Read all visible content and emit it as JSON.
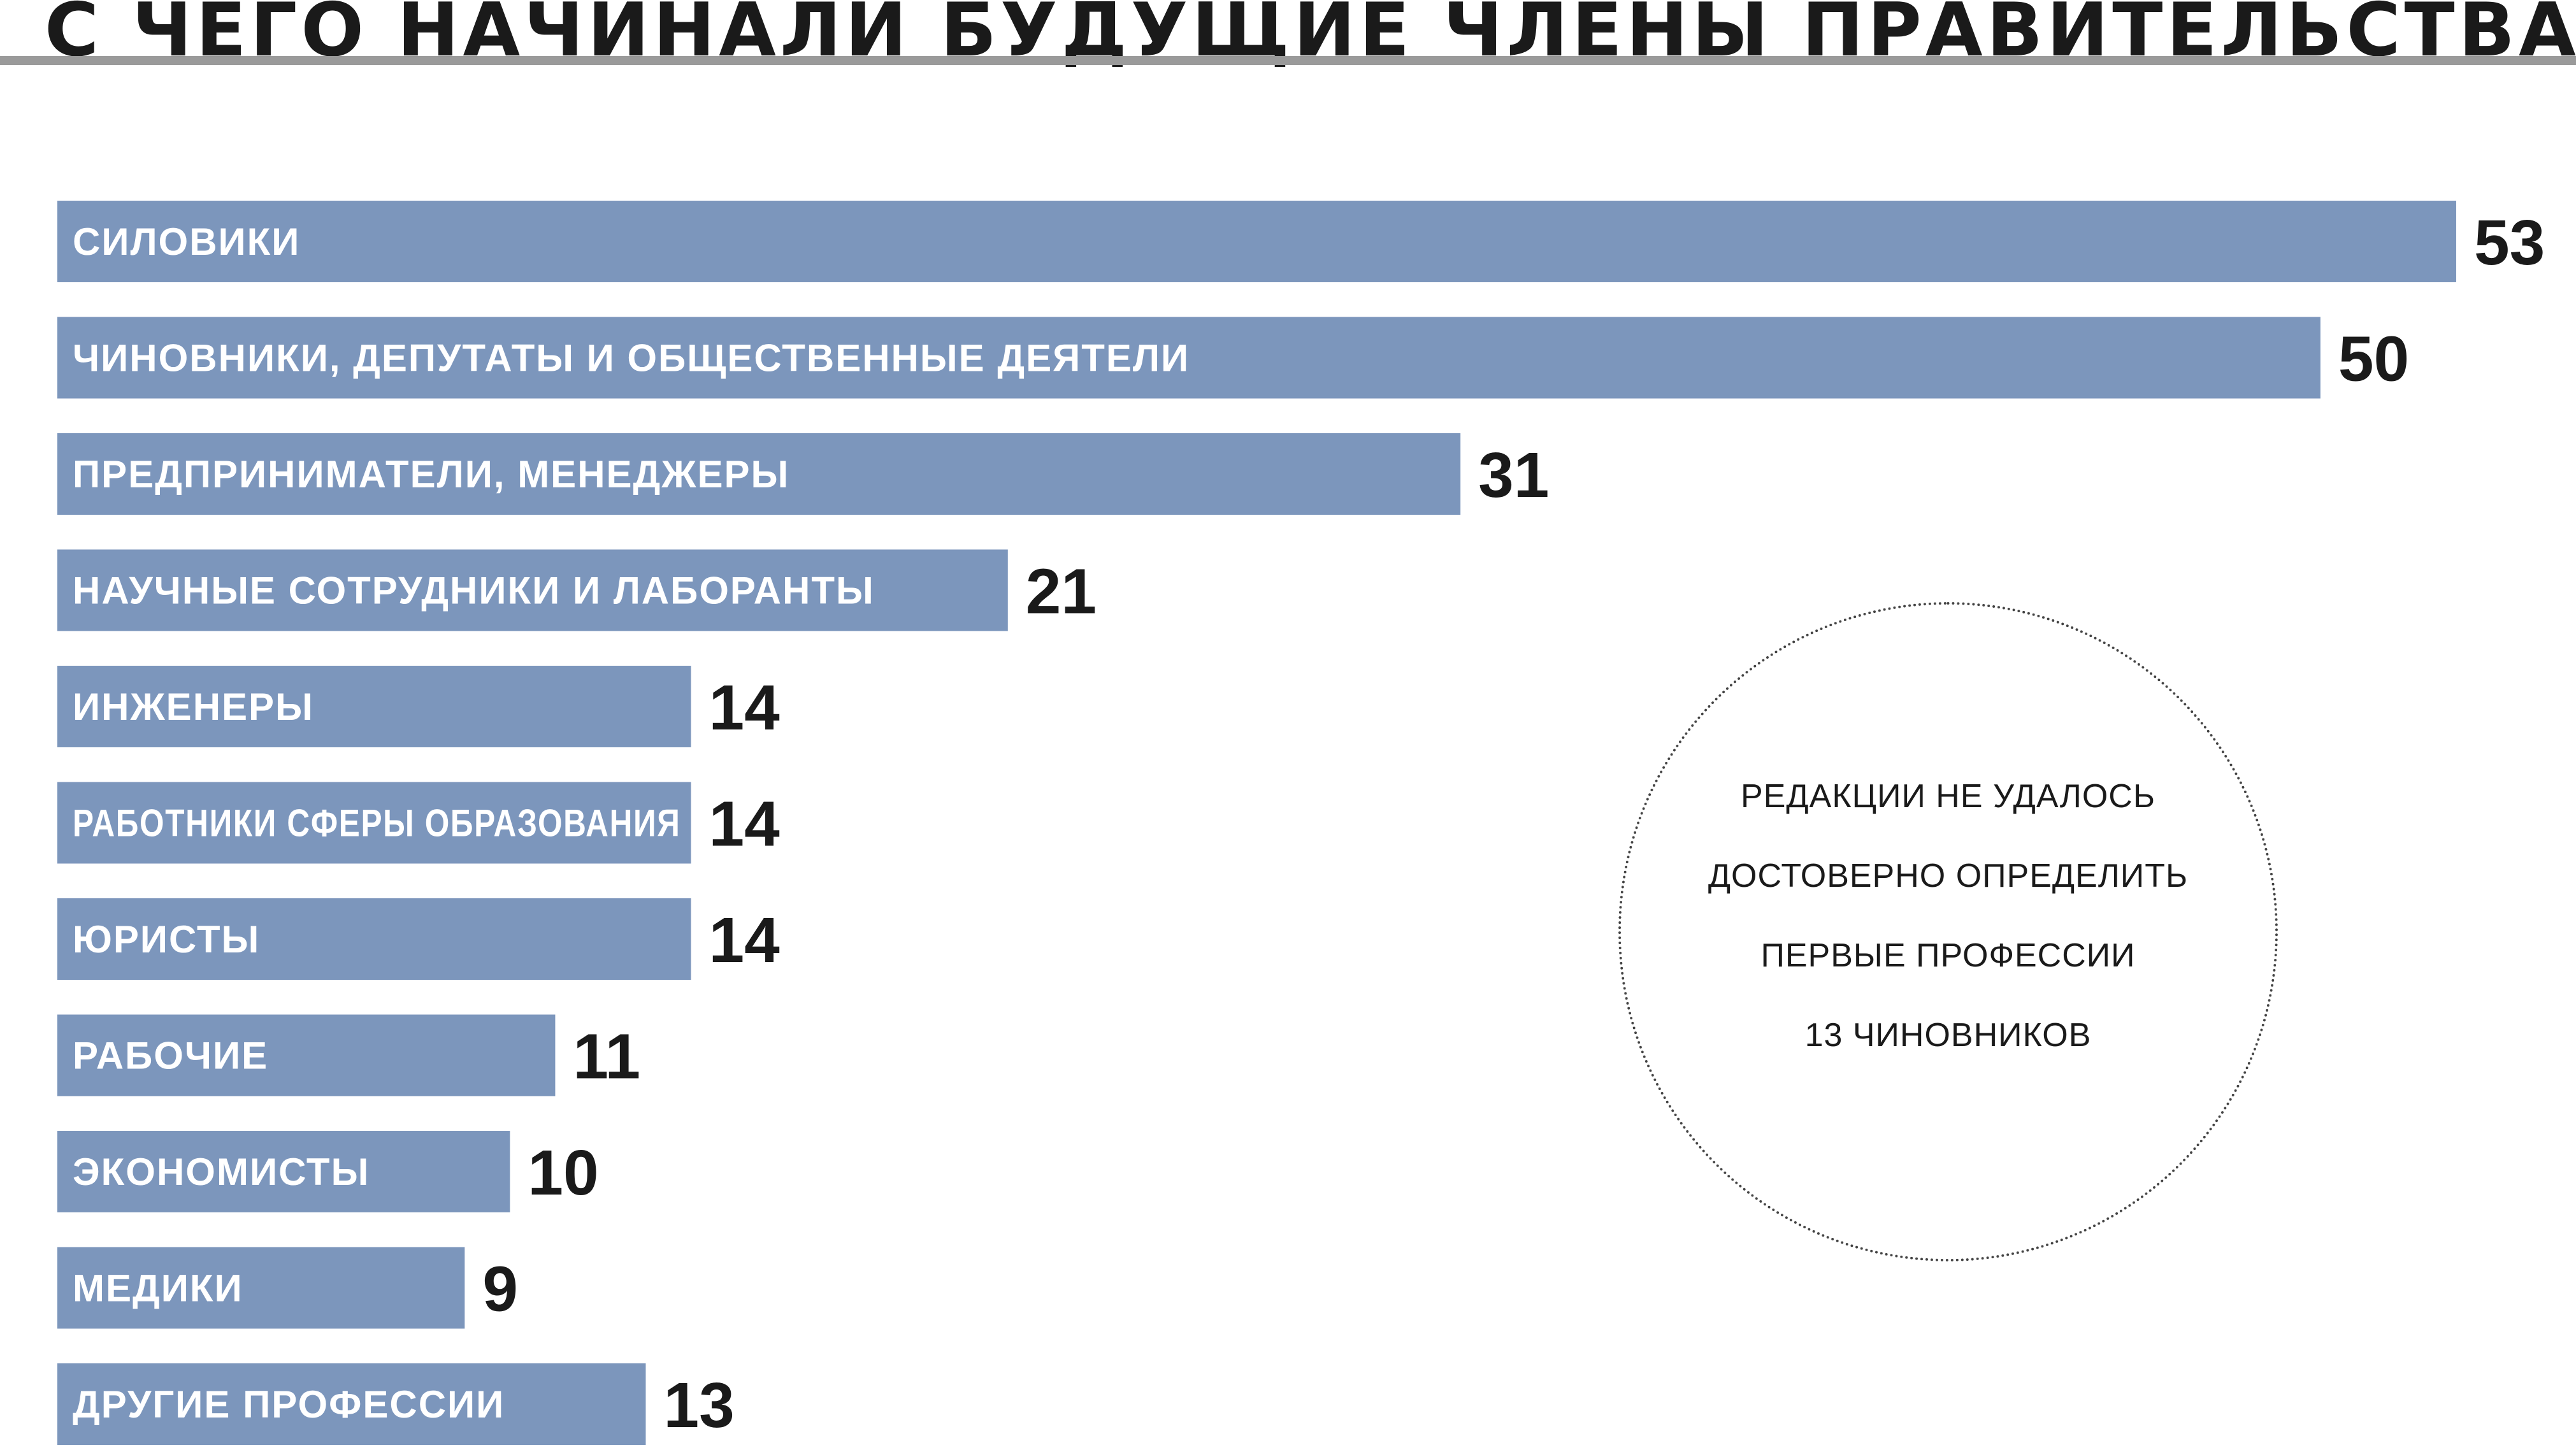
{
  "title": "С ЧЕГО НАЧИНАЛИ БУДУЩИЕ ЧЛЕНЫ ПРАВИТЕЛЬСТВА",
  "note": {
    "lines": [
      "РЕДАКЦИИ НЕ УДАЛОСЬ",
      "ДОСТОВЕРНО ОПРЕДЕЛИТЬ",
      "ПЕРВЫЕ ПРОФЕССИИ",
      "13 ЧИНОВНИКОВ"
    ]
  },
  "colors": {
    "bar": "#7c96bc",
    "text": "#1a1a1a",
    "rule": "#9a9a9a"
  },
  "chart_data": {
    "type": "bar",
    "orientation": "horizontal",
    "title": "С ЧЕГО НАЧИНАЛИ БУДУЩИЕ ЧЛЕНЫ ПРАВИТЕЛЬСТВА",
    "categories": [
      "СИЛОВИКИ",
      "ЧИНОВНИКИ, ДЕПУТАТЫ И ОБЩЕСТВЕННЫЕ ДЕЯТЕЛИ",
      "ПРЕДПРИНИМАТЕЛИ, МЕНЕДЖЕРЫ",
      "НАУЧНЫЕ СОТРУДНИКИ И ЛАБОРАНТЫ",
      "ИНЖЕНЕРЫ",
      "РАБОТНИКИ СФЕРЫ ОБРАЗОВАНИЯ",
      "ЮРИСТЫ",
      "РАБОЧИЕ",
      "ЭКОНОМИСТЫ",
      "МЕДИКИ",
      "ДРУГИЕ ПРОФЕССИИ"
    ],
    "values": [
      53,
      50,
      31,
      21,
      14,
      14,
      14,
      11,
      10,
      9,
      13
    ],
    "xlim": [
      0,
      53
    ],
    "grid": false,
    "legend": "none"
  }
}
